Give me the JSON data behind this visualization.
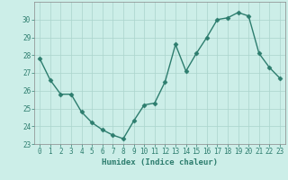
{
  "x": [
    0,
    1,
    2,
    3,
    4,
    5,
    6,
    7,
    8,
    9,
    10,
    11,
    12,
    13,
    14,
    15,
    16,
    17,
    18,
    19,
    20,
    21,
    22,
    23
  ],
  "y": [
    27.8,
    26.6,
    25.8,
    25.8,
    24.8,
    24.2,
    23.8,
    23.5,
    23.3,
    24.3,
    25.2,
    25.3,
    26.5,
    28.6,
    27.1,
    28.1,
    29.0,
    30.0,
    30.1,
    30.4,
    30.2,
    28.1,
    27.3,
    26.7
  ],
  "line_color": "#2d7d6e",
  "marker": "D",
  "marker_size": 2.5,
  "bg_color": "#cceee8",
  "grid_color": "#aad4cc",
  "xlabel": "Humidex (Indice chaleur)",
  "ylim": [
    23,
    31
  ],
  "yticks": [
    23,
    24,
    25,
    26,
    27,
    28,
    29,
    30
  ],
  "xticks": [
    0,
    1,
    2,
    3,
    4,
    5,
    6,
    7,
    8,
    9,
    10,
    11,
    12,
    13,
    14,
    15,
    16,
    17,
    18,
    19,
    20,
    21,
    22,
    23
  ],
  "tick_color": "#2d7d6e",
  "label_color": "#2d7d6e",
  "axis_color": "#2d7d6e",
  "spine_color": "#888888"
}
